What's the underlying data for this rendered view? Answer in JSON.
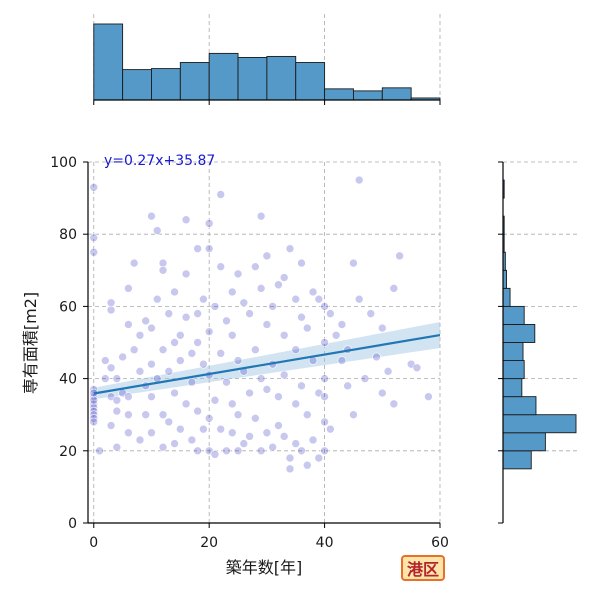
{
  "chart_data": {
    "type": "scatter",
    "xlabel": "築年数[年]",
    "ylabel": "専有面積[m2]",
    "xlim": [
      -1,
      60
    ],
    "ylim": [
      0,
      100
    ],
    "xticks": [
      0,
      20,
      40,
      60
    ],
    "yticks": [
      0,
      20,
      40,
      60,
      80,
      100
    ],
    "grid": true,
    "annotation": "y=0.27x+35.87",
    "regression": {
      "slope": 0.27,
      "intercept": 35.87
    },
    "colors": {
      "points": "#3b3bc4",
      "regression_line": "#1f77b4",
      "confidence_band": "#9cc0e0",
      "histogram_fill": "#5599c9",
      "annotation_text": "#1a1acc"
    },
    "marginal_x_hist": {
      "bin_edges": [
        0,
        5,
        10,
        15,
        20,
        25,
        30,
        35,
        40,
        45,
        50,
        55,
        60
      ],
      "counts": [
        75,
        30,
        31,
        37,
        46,
        42,
        43,
        37,
        11,
        9,
        12,
        2
      ]
    },
    "marginal_y_hist": {
      "bin_edges": [
        15,
        20,
        25,
        30,
        35,
        40,
        45,
        50,
        55,
        60,
        65,
        70,
        75,
        80,
        85,
        90,
        95
      ],
      "counts": [
        24,
        36,
        62,
        28,
        16,
        18,
        17,
        27,
        18,
        6,
        3,
        2,
        1,
        1,
        0,
        1
      ]
    },
    "points": [
      [
        0,
        93
      ],
      [
        0,
        79
      ],
      [
        0,
        75
      ],
      [
        0,
        33
      ],
      [
        0,
        32
      ],
      [
        0,
        31
      ],
      [
        0,
        30
      ],
      [
        0,
        29
      ],
      [
        0,
        35
      ],
      [
        0,
        37
      ],
      [
        0,
        28
      ],
      [
        0,
        34
      ],
      [
        0,
        36
      ],
      [
        1,
        20
      ],
      [
        2,
        45
      ],
      [
        2,
        40
      ],
      [
        3,
        43
      ],
      [
        3,
        59
      ],
      [
        3,
        61
      ],
      [
        3,
        27
      ],
      [
        3,
        35
      ],
      [
        4,
        31
      ],
      [
        4,
        34
      ],
      [
        4,
        21
      ],
      [
        4,
        40
      ],
      [
        5,
        36
      ],
      [
        5,
        46
      ],
      [
        6,
        35
      ],
      [
        6,
        30
      ],
      [
        6,
        25
      ],
      [
        6,
        55
      ],
      [
        6,
        65
      ],
      [
        7,
        72
      ],
      [
        7,
        48
      ],
      [
        8,
        52
      ],
      [
        8,
        42
      ],
      [
        8,
        23
      ],
      [
        9,
        56
      ],
      [
        9,
        38
      ],
      [
        9,
        30
      ],
      [
        10,
        85
      ],
      [
        10,
        54
      ],
      [
        10,
        44
      ],
      [
        10,
        35
      ],
      [
        10,
        25
      ],
      [
        11,
        81
      ],
      [
        11,
        62
      ],
      [
        11,
        40
      ],
      [
        12,
        72
      ],
      [
        12,
        70
      ],
      [
        12,
        48
      ],
      [
        12,
        30
      ],
      [
        12,
        21
      ],
      [
        13,
        58
      ],
      [
        13,
        42
      ],
      [
        13,
        28
      ],
      [
        14,
        64
      ],
      [
        14,
        50
      ],
      [
        14,
        36
      ],
      [
        14,
        22
      ],
      [
        15,
        52
      ],
      [
        15,
        45
      ],
      [
        15,
        26
      ],
      [
        16,
        84
      ],
      [
        16,
        69
      ],
      [
        16,
        57
      ],
      [
        16,
        33
      ],
      [
        17,
        47
      ],
      [
        17,
        39
      ],
      [
        17,
        23
      ],
      [
        18,
        76
      ],
      [
        18,
        58
      ],
      [
        18,
        50
      ],
      [
        18,
        31
      ],
      [
        18,
        20
      ],
      [
        19,
        62
      ],
      [
        19,
        44
      ],
      [
        19,
        26
      ],
      [
        20,
        83
      ],
      [
        20,
        76
      ],
      [
        20,
        53
      ],
      [
        20,
        41
      ],
      [
        20,
        29
      ],
      [
        20,
        20
      ],
      [
        21,
        60
      ],
      [
        21,
        34
      ],
      [
        21,
        19
      ],
      [
        22,
        91
      ],
      [
        22,
        71
      ],
      [
        22,
        47
      ],
      [
        22,
        26
      ],
      [
        23,
        56
      ],
      [
        23,
        39
      ],
      [
        23,
        20
      ],
      [
        24,
        64
      ],
      [
        24,
        52
      ],
      [
        24,
        33
      ],
      [
        24,
        25
      ],
      [
        25,
        69
      ],
      [
        25,
        45
      ],
      [
        25,
        30
      ],
      [
        25,
        20
      ],
      [
        26,
        61
      ],
      [
        26,
        42
      ],
      [
        26,
        22
      ],
      [
        27,
        58
      ],
      [
        27,
        36
      ],
      [
        27,
        24
      ],
      [
        28,
        71
      ],
      [
        28,
        48
      ],
      [
        28,
        29
      ],
      [
        29,
        85
      ],
      [
        29,
        65
      ],
      [
        29,
        40
      ],
      [
        29,
        20
      ],
      [
        30,
        74
      ],
      [
        30,
        55
      ],
      [
        30,
        37
      ],
      [
        30,
        25
      ],
      [
        31,
        60
      ],
      [
        31,
        44
      ],
      [
        31,
        21
      ],
      [
        32,
        66
      ],
      [
        32,
        35
      ],
      [
        32,
        27
      ],
      [
        33,
        68
      ],
      [
        33,
        52
      ],
      [
        33,
        41
      ],
      [
        33,
        24
      ],
      [
        34,
        76
      ],
      [
        34,
        18
      ],
      [
        34,
        15
      ],
      [
        35,
        62
      ],
      [
        35,
        48
      ],
      [
        35,
        33
      ],
      [
        35,
        22
      ],
      [
        36,
        72
      ],
      [
        36,
        57
      ],
      [
        36,
        38
      ],
      [
        36,
        20
      ],
      [
        37,
        54
      ],
      [
        37,
        30
      ],
      [
        37,
        16
      ],
      [
        38,
        64
      ],
      [
        38,
        45
      ],
      [
        38,
        23
      ],
      [
        39,
        62
      ],
      [
        39,
        36
      ],
      [
        39,
        18
      ],
      [
        40,
        60
      ],
      [
        40,
        50
      ],
      [
        40,
        40
      ],
      [
        40,
        35
      ],
      [
        40,
        28
      ],
      [
        40,
        20
      ],
      [
        41,
        58
      ],
      [
        41,
        26
      ],
      [
        42,
        52
      ],
      [
        43,
        55
      ],
      [
        43,
        45
      ],
      [
        44,
        48
      ],
      [
        44,
        38
      ],
      [
        45,
        72
      ],
      [
        45,
        30
      ],
      [
        46,
        95
      ],
      [
        46,
        62
      ],
      [
        47,
        40
      ],
      [
        48,
        58
      ],
      [
        49,
        46
      ],
      [
        50,
        54
      ],
      [
        50,
        36
      ],
      [
        51,
        42
      ],
      [
        52,
        65
      ],
      [
        52,
        33
      ],
      [
        53,
        74
      ],
      [
        55,
        44
      ],
      [
        56,
        43
      ],
      [
        58,
        35
      ]
    ]
  },
  "badge": {
    "label": "港区"
  }
}
